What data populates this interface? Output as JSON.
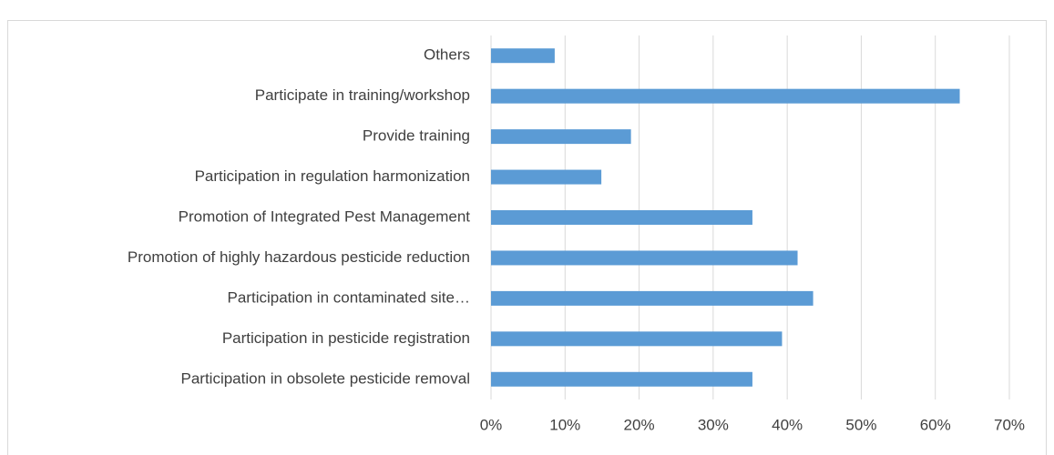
{
  "chart_data": {
    "type": "bar",
    "orientation": "horizontal",
    "categories": [
      "Others",
      "Participate in training/workshop",
      "Provide training",
      "Participation in regulation harmonization",
      "Promotion of Integrated Pest Management",
      "Promotion of highly hazardous pesticide reduction",
      "Participation in contaminated site…",
      "Participation in pesticide registration",
      "Participation in obsolete pesticide removal"
    ],
    "values": [
      8.6,
      63.3,
      18.9,
      14.9,
      35.3,
      41.4,
      43.5,
      39.3,
      35.3
    ],
    "color": "#5b9bd5",
    "xlim": [
      0,
      70
    ],
    "xticks": [
      {
        "value": 0,
        "label": "0%"
      },
      {
        "value": 10,
        "label": "10%"
      },
      {
        "value": 20,
        "label": "20%"
      },
      {
        "value": 30,
        "label": "30%"
      },
      {
        "value": 40,
        "label": "40%"
      },
      {
        "value": 50,
        "label": "50%"
      },
      {
        "value": 60,
        "label": "60%"
      },
      {
        "value": 70,
        "label": "70%"
      }
    ],
    "grid": true
  }
}
